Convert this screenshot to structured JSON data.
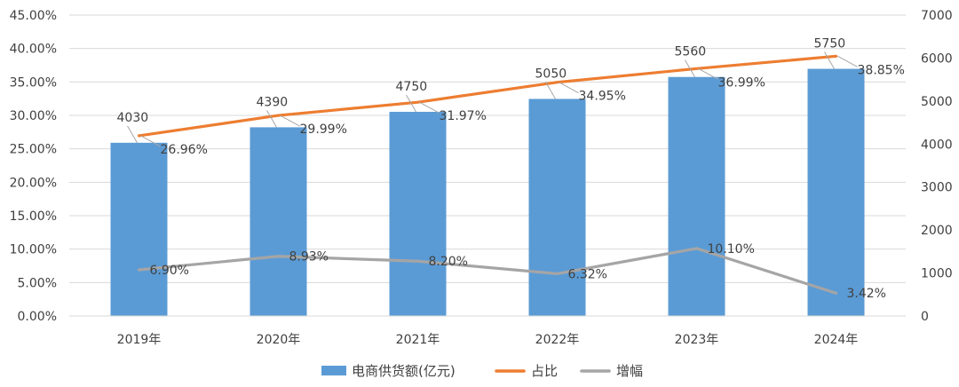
{
  "chart_data": {
    "type": "bar",
    "categories": [
      "2019年",
      "2020年",
      "2021年",
      "2022年",
      "2023年",
      "2024年"
    ],
    "series": [
      {
        "name": "电商供货额(亿元)",
        "type": "bar",
        "axis": "right",
        "color": "#5B9BD5",
        "values": [
          4030,
          4390,
          4750,
          5050,
          5560,
          5750
        ],
        "labels": [
          "4030",
          "4390",
          "4750",
          "5050",
          "5560",
          "5750"
        ]
      },
      {
        "name": "占比",
        "type": "line",
        "axis": "left",
        "color": "#ED7D31",
        "values": [
          26.96,
          29.99,
          31.97,
          34.95,
          36.99,
          38.85
        ],
        "labels": [
          "26.96%",
          "29.99%",
          "31.97%",
          "34.95%",
          "36.99%",
          "38.85%"
        ]
      },
      {
        "name": "增幅",
        "type": "line",
        "axis": "left",
        "color": "#A5A5A5",
        "values": [
          6.9,
          8.93,
          8.2,
          6.32,
          10.1,
          3.42
        ],
        "labels": [
          "6.90%",
          "8.93%",
          "8.20%",
          "6.32%",
          "10.10%",
          "3.42%"
        ]
      }
    ],
    "y_left": {
      "range": [
        0,
        45
      ],
      "ticks": [
        "0.00%",
        "5.00%",
        "10.00%",
        "15.00%",
        "20.00%",
        "25.00%",
        "30.00%",
        "35.00%",
        "40.00%",
        "45.00%"
      ]
    },
    "y_right": {
      "range": [
        0,
        7000
      ],
      "ticks": [
        "0",
        "1000",
        "2000",
        "3000",
        "4000",
        "5000",
        "6000",
        "7000"
      ]
    },
    "grid": true,
    "legend": "bottom"
  }
}
